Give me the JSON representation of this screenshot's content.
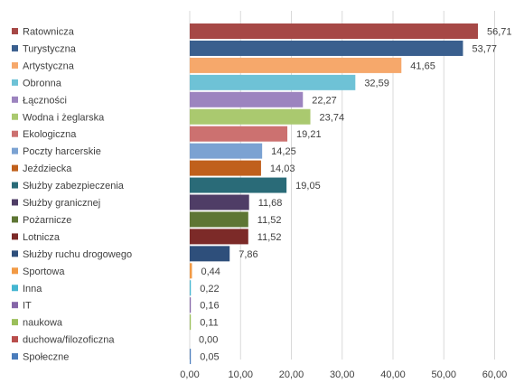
{
  "chart_data": {
    "type": "bar",
    "orientation": "horizontal",
    "title": "",
    "xlabel": "",
    "ylabel": "",
    "xlim": [
      0,
      60
    ],
    "ticks": [
      0,
      10,
      20,
      30,
      40,
      50,
      60
    ],
    "tick_labels": [
      "0,00",
      "10,00",
      "20,00",
      "30,00",
      "40,00",
      "50,00",
      "60,00"
    ],
    "grid": true,
    "legend_position": "left",
    "categories": [
      "Ratownicza",
      "Turystyczna",
      "Artystyczna",
      "Obronna",
      "Łączności",
      "Wodna i żeglarska",
      "Ekologiczna",
      "Poczty harcerskie",
      "Jeździecka",
      "Służby zabezpieczenia",
      "Służby granicznej",
      "Pożarnicze",
      "Lotnicza",
      "Służby ruchu drogowego",
      "Sportowa",
      "Inna",
      "IT",
      "naukowa",
      "duchowa/filozoficzna",
      "Społeczne"
    ],
    "values": [
      56.71,
      53.77,
      41.65,
      32.59,
      22.27,
      23.74,
      19.21,
      14.25,
      14.03,
      19.05,
      11.68,
      11.52,
      11.52,
      7.86,
      0.44,
      0.22,
      0.16,
      0.11,
      0.0,
      0.05
    ],
    "value_labels": [
      "56,71",
      "53,77",
      "41,65",
      "32,59",
      "22,27",
      "23,74",
      "19,21",
      "14,25",
      "14,03",
      "19,05",
      "11,68",
      "11,52",
      "11,52",
      "7,86",
      "0,44",
      "0,22",
      "0,16",
      "0,11",
      "0,00",
      "0,05"
    ],
    "colors": [
      "#a64846",
      "#3a5f8e",
      "#f6a86b",
      "#6ec2d6",
      "#9c84bf",
      "#aac96f",
      "#cc7170",
      "#7ba2d2",
      "#c0601c",
      "#2a6b78",
      "#4f3d66",
      "#5e7634",
      "#7c2a28",
      "#2e4f7b",
      "#f29a45",
      "#45b6d1",
      "#8566a8",
      "#9bbf5a",
      "#b94e4c",
      "#4a7cbb"
    ]
  }
}
